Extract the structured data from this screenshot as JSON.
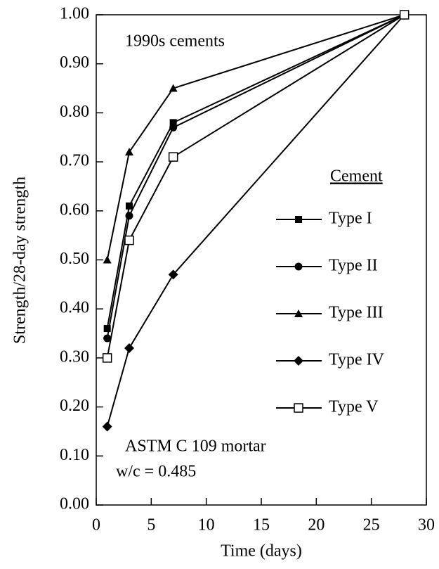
{
  "chart_data": {
    "type": "line",
    "ylabel": "Strength/28-day strength",
    "xlabel": "Time (days)",
    "annotations": [
      "1990s cements",
      "ASTM C 109 mortar",
      "w/c = 0.485"
    ],
    "legend_title": "Cement",
    "x": [
      1,
      3,
      7,
      28
    ],
    "series": [
      {
        "name": "Type I",
        "color": "#000000",
        "marker": "square",
        "values": [
          0.36,
          0.61,
          0.78,
          1.0
        ]
      },
      {
        "name": "Type II",
        "color": "#000000",
        "marker": "circle",
        "values": [
          0.34,
          0.59,
          0.77,
          1.0
        ]
      },
      {
        "name": "Type III",
        "color": "#000000",
        "marker": "triangle",
        "values": [
          0.5,
          0.72,
          0.85,
          1.0
        ]
      },
      {
        "name": "Type IV",
        "color": "#000000",
        "marker": "diamond",
        "values": [
          0.16,
          0.32,
          0.47,
          1.0
        ]
      },
      {
        "name": "Type V",
        "color": "#000000",
        "marker": "open-square",
        "values": [
          0.3,
          0.54,
          0.71,
          1.0
        ]
      }
    ],
    "xlim": [
      0,
      30
    ],
    "xticks": [
      0,
      5,
      10,
      15,
      20,
      25,
      30
    ],
    "ylim": [
      0,
      1
    ],
    "yticks": [
      {
        "value": 0,
        "label": "0.00"
      },
      {
        "value": 0.1,
        "label": "0.10"
      },
      {
        "value": 0.2,
        "label": "0.20"
      },
      {
        "value": 0.3,
        "label": "0.30"
      },
      {
        "value": 0.4,
        "label": "0.40"
      },
      {
        "value": 0.5,
        "label": "0.50"
      },
      {
        "value": 0.6,
        "label": "0.60"
      },
      {
        "value": 0.7,
        "label": "0.70"
      },
      {
        "value": 0.8,
        "label": "0.80"
      },
      {
        "value": 0.9,
        "label": "0.90"
      },
      {
        "value": 1,
        "label": "1.00"
      }
    ],
    "grid": false,
    "legend": "right"
  }
}
